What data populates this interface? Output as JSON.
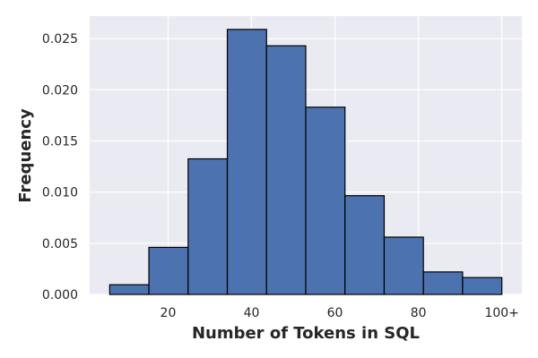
{
  "chart_data": {
    "type": "bar",
    "xlabel": "Number of Tokens in SQL",
    "ylabel": "Frequency",
    "bins": [
      {
        "x0": 6.0,
        "x1": 15.4,
        "value": 0.00095
      },
      {
        "x0": 15.4,
        "x1": 24.8,
        "value": 0.0046
      },
      {
        "x0": 24.8,
        "x1": 34.2,
        "value": 0.01325
      },
      {
        "x0": 34.2,
        "x1": 43.6,
        "value": 0.0259
      },
      {
        "x0": 43.6,
        "x1": 53.0,
        "value": 0.0243
      },
      {
        "x0": 53.0,
        "x1": 62.4,
        "value": 0.0183
      },
      {
        "x0": 62.4,
        "x1": 71.8,
        "value": 0.00965
      },
      {
        "x0": 71.8,
        "x1": 81.2,
        "value": 0.0056
      },
      {
        "x0": 81.2,
        "x1": 90.6,
        "value": 0.0022
      },
      {
        "x0": 90.6,
        "x1": 100.0,
        "value": 0.00165
      }
    ],
    "xlim": [
      1.2,
      104.8
    ],
    "ylim": [
      0,
      0.0272
    ],
    "x_ticks": [
      {
        "value": 20,
        "label": "20"
      },
      {
        "value": 40,
        "label": "40"
      },
      {
        "value": 60,
        "label": "60"
      },
      {
        "value": 80,
        "label": "80"
      },
      {
        "value": 100,
        "label": "100+"
      }
    ],
    "y_ticks": [
      {
        "value": 0.0,
        "label": "0.000"
      },
      {
        "value": 0.005,
        "label": "0.005"
      },
      {
        "value": 0.01,
        "label": "0.010"
      },
      {
        "value": 0.015,
        "label": "0.015"
      },
      {
        "value": 0.02,
        "label": "0.020"
      },
      {
        "value": 0.025,
        "label": "0.025"
      }
    ],
    "grid": true,
    "colors": {
      "bar_fill": "#4c72b0",
      "bar_edge": "#000000",
      "plot_background": "#eaeaf2",
      "grid": "#ffffff"
    }
  }
}
